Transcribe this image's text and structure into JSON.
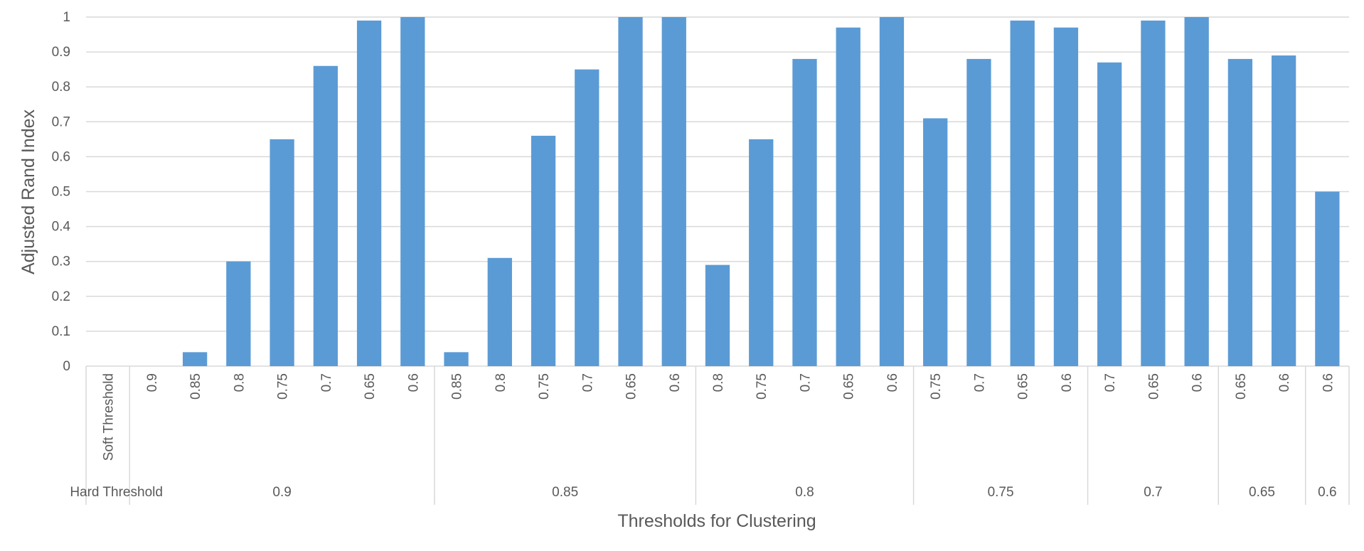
{
  "chart_data": {
    "type": "bar",
    "xlabel": "Thresholds for Clustering",
    "ylabel": "Adjusted Rand Index",
    "ylim": [
      0,
      1
    ],
    "yticks": [
      "0",
      "0.1",
      "0.2",
      "0.3",
      "0.4",
      "0.5",
      "0.6",
      "0.7",
      "0.8",
      "0.9",
      "1"
    ],
    "grid": true,
    "bar_color": "#5B9BD5",
    "row_labels": {
      "soft": "Soft Threshold",
      "hard": "Hard Threshold"
    },
    "groups": [
      {
        "hard": "0.9",
        "soft": [
          "0.9",
          "0.85",
          "0.8",
          "0.75",
          "0.7",
          "0.65",
          "0.6"
        ],
        "values": [
          0,
          0.04,
          0.3,
          0.65,
          0.86,
          0.99,
          1.0
        ]
      },
      {
        "hard": "0.85",
        "soft": [
          "0.85",
          "0.8",
          "0.75",
          "0.7",
          "0.65",
          "0.6"
        ],
        "values": [
          0.04,
          0.31,
          0.66,
          0.85,
          1.0,
          1.0
        ]
      },
      {
        "hard": "0.8",
        "soft": [
          "0.8",
          "0.75",
          "0.7",
          "0.65",
          "0.6"
        ],
        "values": [
          0.29,
          0.65,
          0.88,
          0.97,
          1.0
        ]
      },
      {
        "hard": "0.75",
        "soft": [
          "0.75",
          "0.7",
          "0.65",
          "0.6"
        ],
        "values": [
          0.71,
          0.88,
          0.99,
          0.97
        ]
      },
      {
        "hard": "0.7",
        "soft": [
          "0.7",
          "0.65",
          "0.6"
        ],
        "values": [
          0.87,
          0.99,
          1.0
        ]
      },
      {
        "hard": "0.65",
        "soft": [
          "0.65",
          "0.6"
        ],
        "values": [
          0.88,
          0.89
        ]
      },
      {
        "hard": "0.6",
        "soft": [
          "0.6"
        ],
        "values": [
          0.5
        ]
      }
    ]
  }
}
